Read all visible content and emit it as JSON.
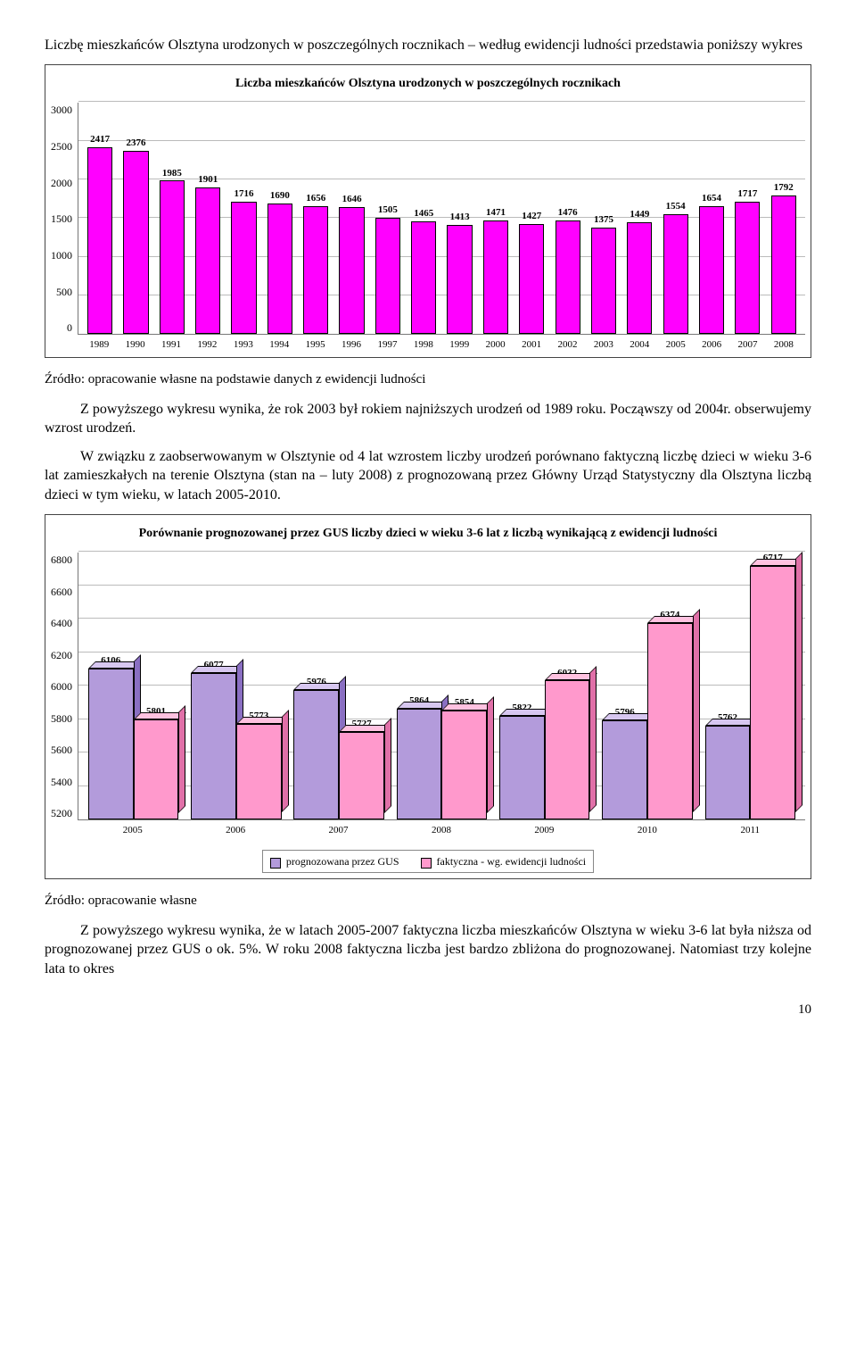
{
  "intro_para": "Liczbę mieszkańców Olsztyna urodzonych w poszczególnych rocznikach – według ewidencji ludności przedstawia poniższy wykres",
  "chart1": {
    "type": "bar",
    "title": "Liczba mieszkańców Olsztyna urodzonych w poszczególnych rocznikach",
    "categories": [
      "1989",
      "1990",
      "1991",
      "1992",
      "1993",
      "1994",
      "1995",
      "1996",
      "1997",
      "1998",
      "1999",
      "2000",
      "2001",
      "2002",
      "2003",
      "2004",
      "2005",
      "2006",
      "2007",
      "2008"
    ],
    "values": [
      2417,
      2376,
      1985,
      1901,
      1716,
      1690,
      1656,
      1646,
      1505,
      1465,
      1413,
      1471,
      1427,
      1476,
      1375,
      1449,
      1554,
      1654,
      1717,
      1792
    ],
    "bar_fill": "#ff00ff",
    "bar_border": "#000000",
    "ylim": [
      0,
      3000
    ],
    "yticks": [
      0,
      500,
      1000,
      1500,
      2000,
      2500,
      3000
    ],
    "grid_color": "#bbbbbb",
    "label_fontsize": 11,
    "title_fontsize": 14,
    "background_color": "#ffffff"
  },
  "source1": "Źródło: opracowanie własne  na podstawie danych z ewidencji ludności",
  "para2a": "Z powyższego wykresu wynika, że rok 2003 był rokiem najniższych urodzeń od 1989 roku. Począwszy od 2004r. obserwujemy wzrost urodzeń.",
  "para2b": "W związku z zaobserwowanym w Olsztynie od 4 lat wzrostem liczby urodzeń porównano faktyczną liczbę dzieci w wieku 3-6 lat zamieszkałych na terenie Olsztyna (stan na – luty 2008) z prognozowaną przez Główny Urząd Statystyczny dla Olsztyna liczbą dzieci w tym wieku, w latach 2005-2010.",
  "chart2": {
    "type": "bar",
    "title": "Porównanie prognozowanej przez GUS liczby dzieci w wieku 3-6 lat z liczbą wynikającą z ewidencji ludności",
    "categories": [
      "2005",
      "2006",
      "2007",
      "2008",
      "2009",
      "2010",
      "2011"
    ],
    "series": [
      {
        "name": "prognozowana przez GUS",
        "values": [
          6106,
          6077,
          5976,
          5864,
          5822,
          5796,
          5762
        ],
        "face_color": "#b39bdb",
        "top_color": "#d7c7f0",
        "side_color": "#8a6fc2"
      },
      {
        "name": "faktyczna - wg. ewidencji ludności",
        "values": [
          5801,
          5773,
          5727,
          5854,
          6032,
          6374,
          6717
        ],
        "face_color": "#ff99cc",
        "top_color": "#ffc2e0",
        "side_color": "#e070a8"
      }
    ],
    "ylim": [
      5200,
      6800
    ],
    "yticks": [
      5200,
      5400,
      5600,
      5800,
      6000,
      6200,
      6400,
      6600,
      6800
    ],
    "grid_color": "#bbbbbb",
    "label_fontsize": 11,
    "title_fontsize": 14,
    "background_color": "#ffffff",
    "legend_labels": [
      "prognozowana przez GUS",
      "faktyczna - wg. ewidencji ludności"
    ]
  },
  "source2": "Źródło: opracowanie własne",
  "para3": "Z powyższego wykresu wynika, że w latach 2005-2007 faktyczna liczba mieszkańców Olsztyna w wieku 3-6 lat była niższa od prognozowanej przez GUS o ok. 5%. W roku 2008 faktyczna liczba jest bardzo zbliżona do prognozowanej. Natomiast trzy kolejne lata to okres",
  "page_number": "10"
}
